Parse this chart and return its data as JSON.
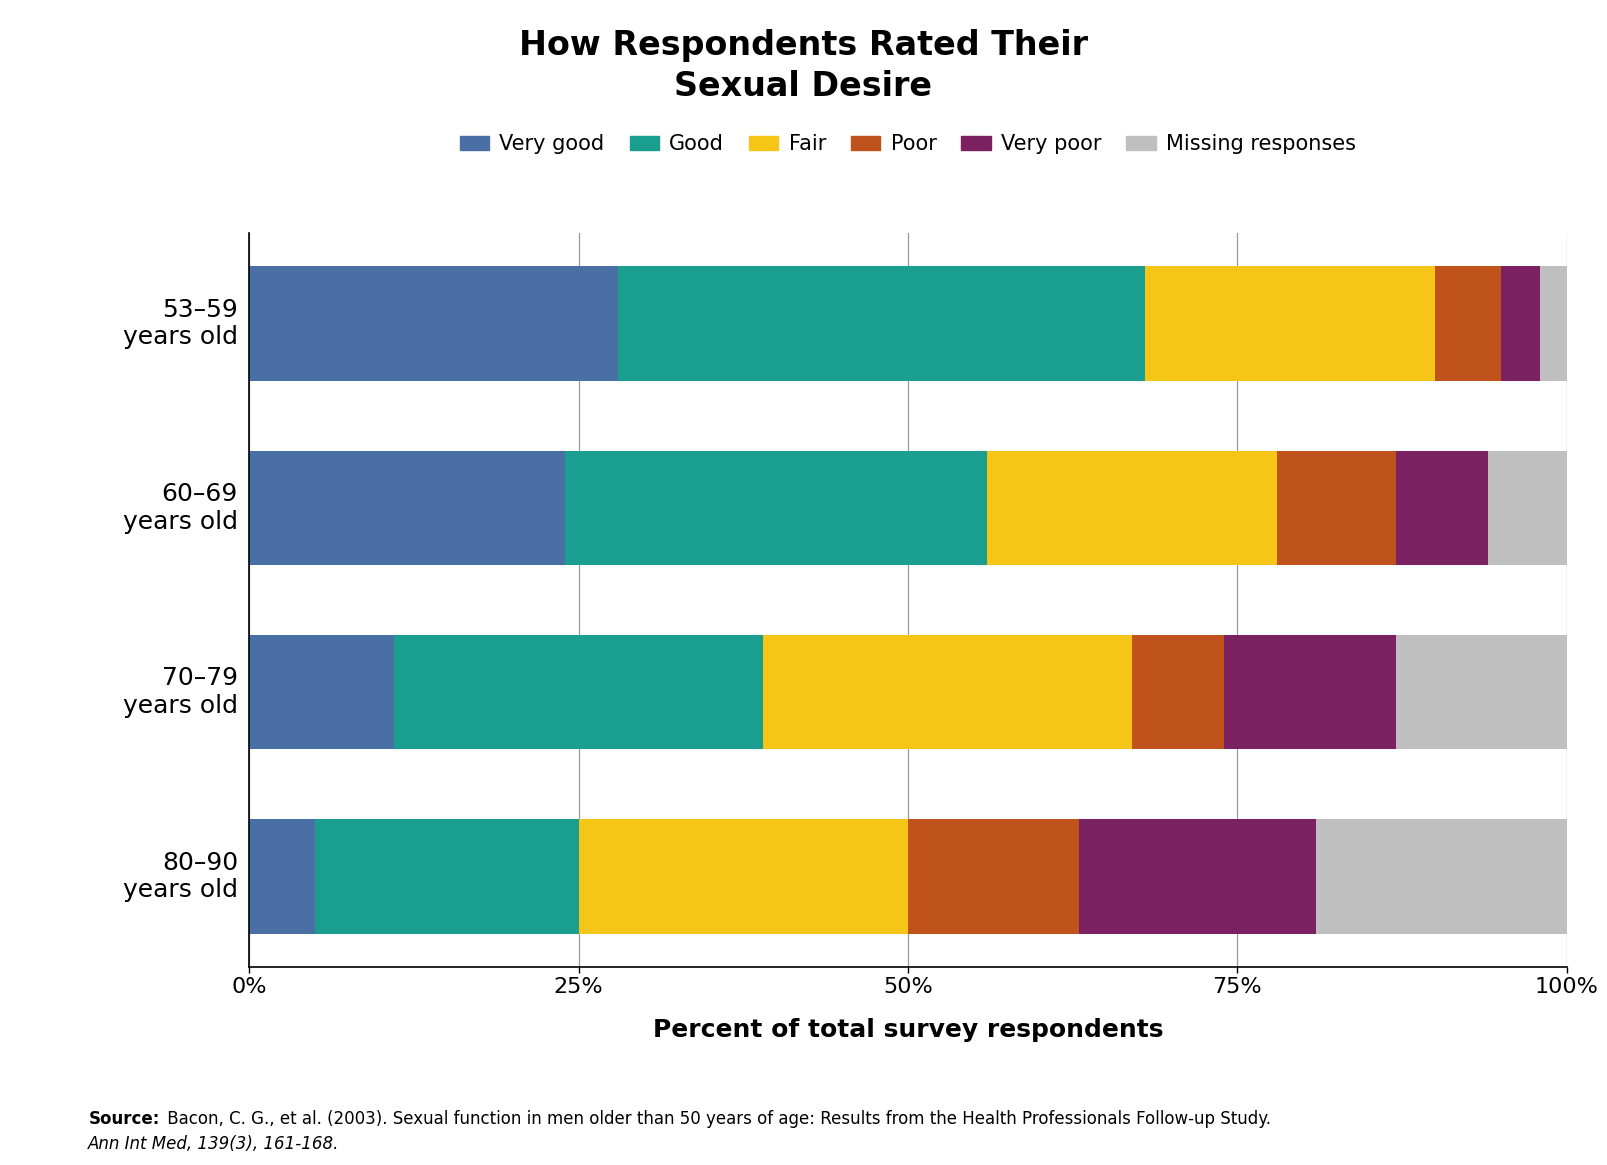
{
  "title": "How Respondents Rated Their\nSexual Desire",
  "xlabel": "Percent of total survey respondents",
  "categories": [
    "53–59\nyears old",
    "60–69\nyears old",
    "70–79\nyears old",
    "80–90\nyears old"
  ],
  "segments": [
    "Very good",
    "Good",
    "Fair",
    "Poor",
    "Very poor",
    "Missing responses"
  ],
  "colors": [
    "#4a6fa5",
    "#1a9e8f",
    "#f5c518",
    "#c0531c",
    "#7b2060",
    "#c0bfbf"
  ],
  "data": [
    [
      28,
      40,
      22,
      5,
      3,
      2
    ],
    [
      24,
      32,
      22,
      9,
      7,
      6
    ],
    [
      11,
      28,
      28,
      7,
      13,
      13
    ],
    [
      5,
      20,
      25,
      13,
      18,
      19
    ]
  ],
  "xticks": [
    0,
    25,
    50,
    75,
    100
  ],
  "xlim": [
    0,
    100
  ],
  "source_bold": "Source:",
  "source_line1": " Bacon, C. G., et al. (2003). Sexual function in men older than 50 years of age: Results from the Health Professionals Follow-up Study.",
  "source_line2": "Ann Int Med, 139(3), 161-168.",
  "bg_color": "#ffffff",
  "title_fontsize": 24,
  "label_fontsize": 18,
  "tick_fontsize": 16,
  "legend_fontsize": 15,
  "ytick_fontsize": 18,
  "source_fontsize": 12
}
